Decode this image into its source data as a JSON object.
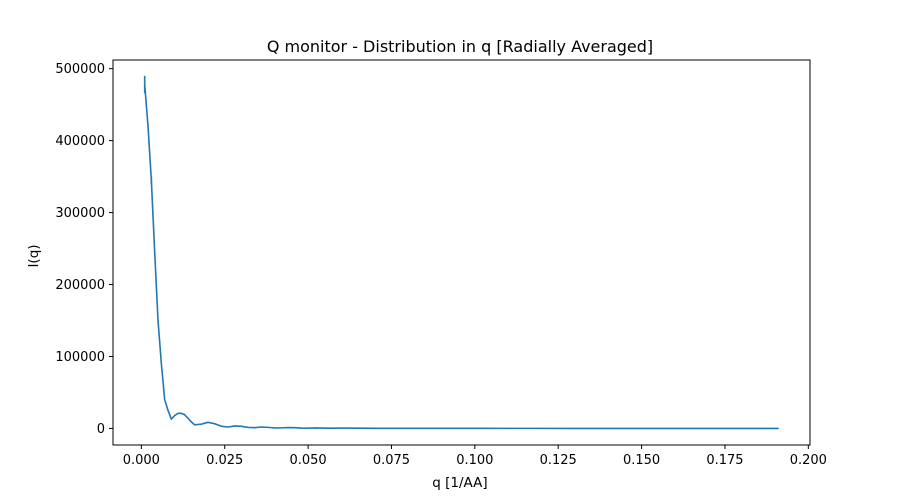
{
  "chart_data": {
    "type": "line",
    "title": "Q monitor - Distribution in q [Radially Averaged]",
    "xlabel": "q [1/AA]",
    "ylabel": "I(q)",
    "xlim": [
      -0.0085,
      0.2005
    ],
    "ylim": [
      -23000,
      512000
    ],
    "x_ticks": [
      0.0,
      0.025,
      0.05,
      0.075,
      0.1,
      0.125,
      0.15,
      0.175,
      0.2
    ],
    "x_tick_labels": [
      "0.000",
      "0.025",
      "0.050",
      "0.075",
      "0.100",
      "0.125",
      "0.150",
      "0.175",
      "0.200"
    ],
    "y_ticks": [
      0,
      100000,
      200000,
      300000,
      400000,
      500000
    ],
    "y_tick_labels": [
      "0",
      "100000",
      "200000",
      "300000",
      "400000",
      "500000"
    ],
    "grid": false,
    "legend": "none",
    "series": [
      {
        "color": "#1f77b4",
        "x": [
          0.001,
          0.002,
          0.003,
          0.004,
          0.005,
          0.006,
          0.007,
          0.008,
          0.009,
          0.01,
          0.011,
          0.012,
          0.013,
          0.014,
          0.015,
          0.016,
          0.018,
          0.02,
          0.022,
          0.024,
          0.026,
          0.028,
          0.03,
          0.032,
          0.034,
          0.036,
          0.038,
          0.04,
          0.042,
          0.044,
          0.046,
          0.048,
          0.05,
          0.052,
          0.054,
          0.056,
          0.058,
          0.06,
          0.065,
          0.07,
          0.075,
          0.08,
          0.085,
          0.09,
          0.095,
          0.1,
          0.11,
          0.12,
          0.13,
          0.14,
          0.15,
          0.16,
          0.17,
          0.18,
          0.191
        ],
        "y": [
          478000,
          420000,
          345000,
          245000,
          150000,
          90000,
          40000,
          25000,
          13000,
          18000,
          21000,
          21000,
          19000,
          14000,
          9000,
          5000,
          6000,
          8500,
          6500,
          3000,
          2000,
          3500,
          3000,
          1500,
          1000,
          2000,
          1500,
          700,
          800,
          1200,
          1000,
          600,
          400,
          700,
          500,
          300,
          400,
          500,
          300,
          250,
          250,
          200,
          200,
          150,
          150,
          120,
          100,
          100,
          80,
          80,
          60,
          60,
          50,
          50,
          40
        ]
      }
    ],
    "errorbars": {
      "x": [
        0.001,
        0.003
      ],
      "y": [
        478000,
        345000
      ],
      "err": [
        12000,
        5000
      ]
    }
  }
}
